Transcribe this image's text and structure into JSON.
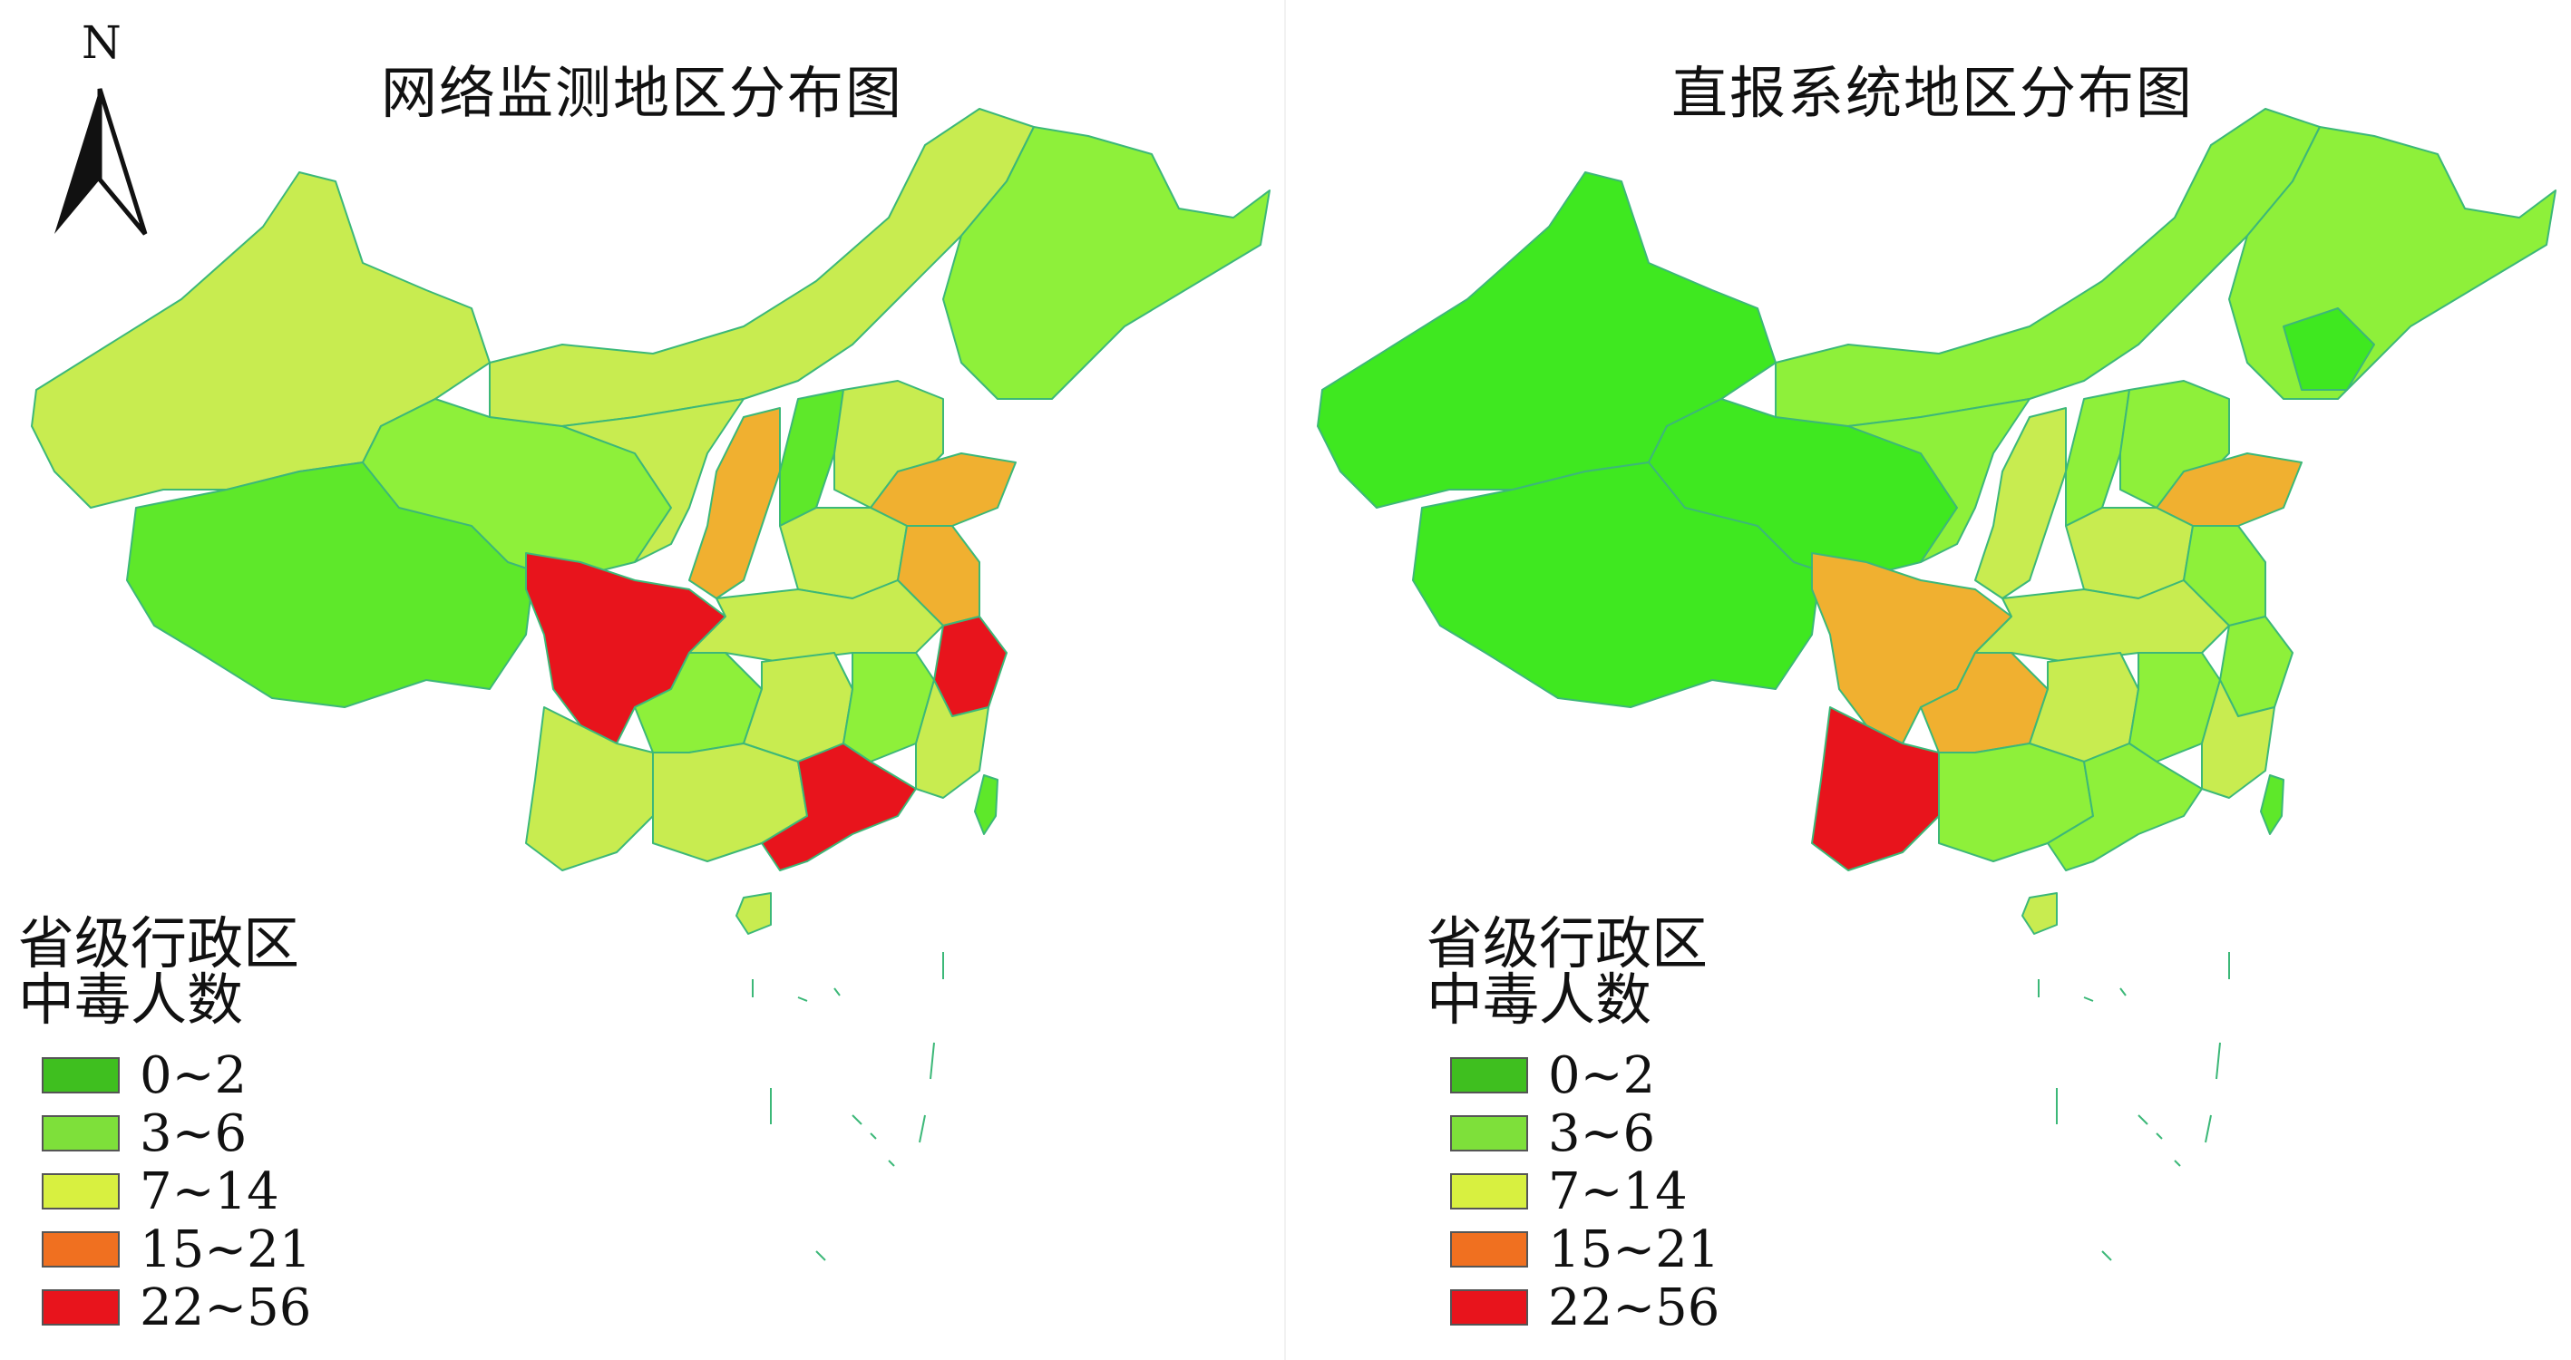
{
  "north_arrow": {
    "letter": "N"
  },
  "legend": {
    "title_line1": "省级行政区",
    "title_line2": "中毒人数",
    "items": [
      {
        "label": "0~2",
        "color": "#3fbf1f"
      },
      {
        "label": "3~6",
        "color": "#7ee03a"
      },
      {
        "label": "7~14",
        "color": "#d8f040"
      },
      {
        "label": "15~21",
        "color": "#f07020"
      },
      {
        "label": "22~56",
        "color": "#e8141c"
      }
    ]
  },
  "panels": [
    {
      "title": "网络监测地区分布图"
    },
    {
      "title": "直报系统地区分布图"
    }
  ],
  "map_colors": {
    "bin_0_2": "#3fe820",
    "bin_3_6": "#8ef03a",
    "bin_7_14": "#c8ec50",
    "bin_15_21": "#f0b030",
    "bin_22_56": "#e8141c",
    "border": "#3cb878"
  }
}
